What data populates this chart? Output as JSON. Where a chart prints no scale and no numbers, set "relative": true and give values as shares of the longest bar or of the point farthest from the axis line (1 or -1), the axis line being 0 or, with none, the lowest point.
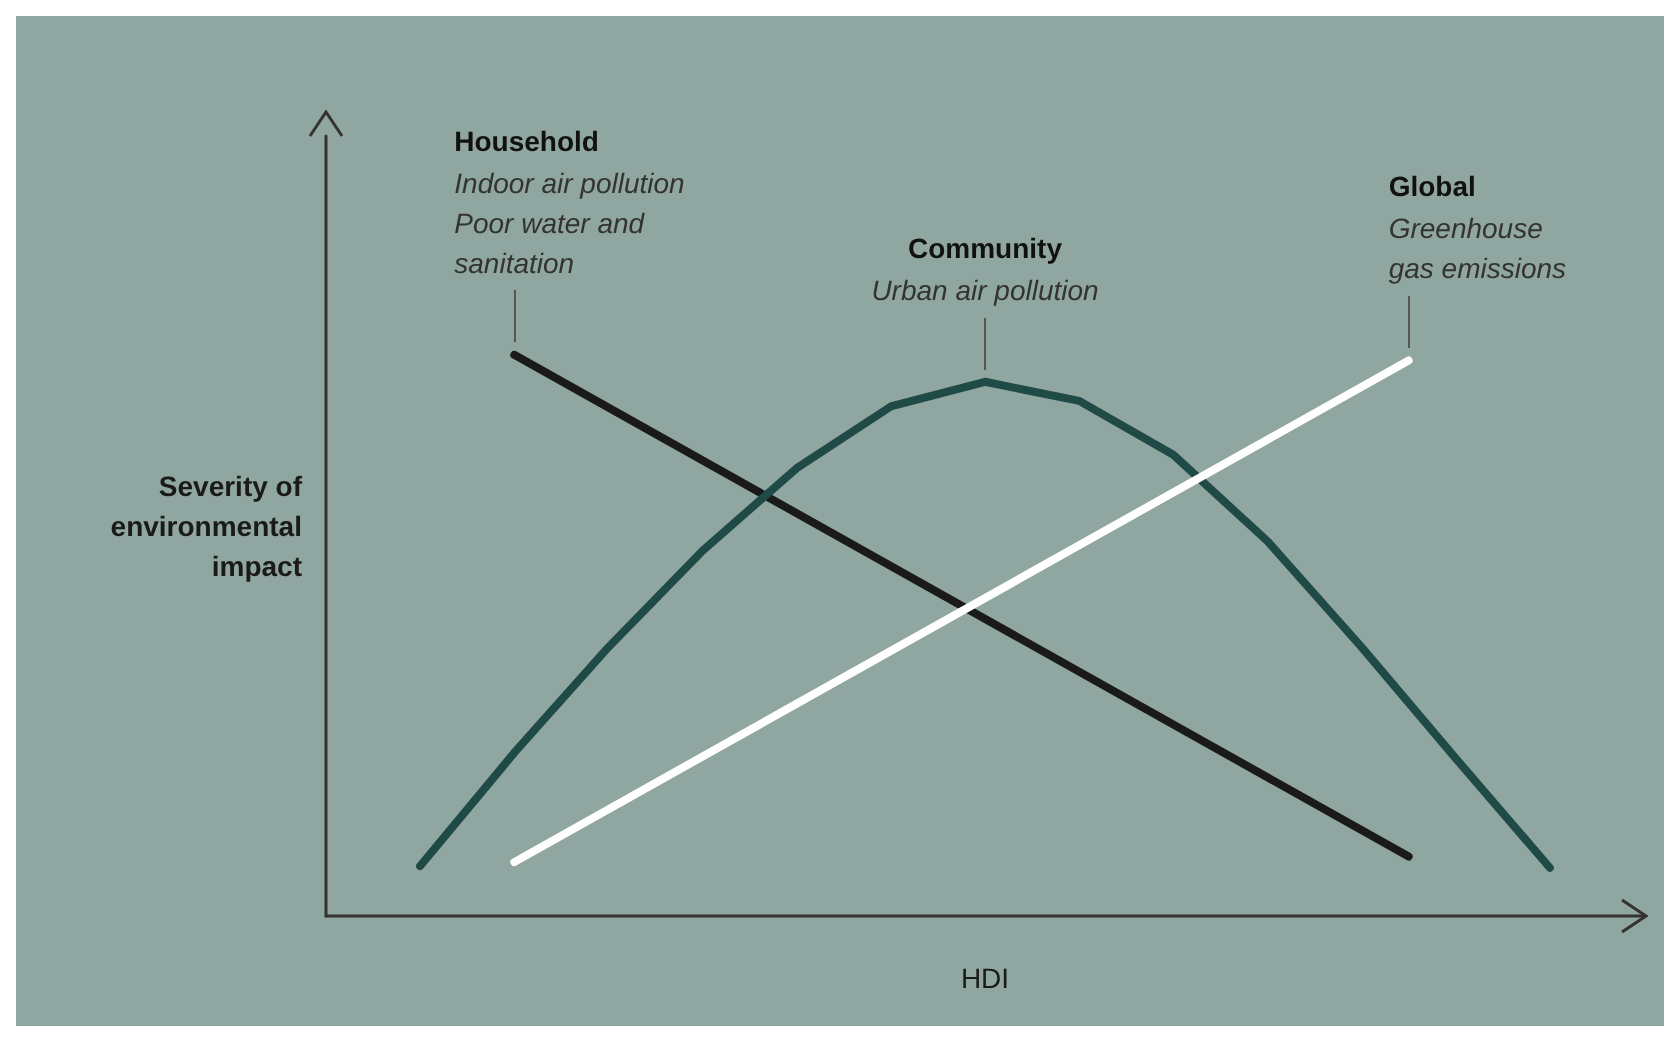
{
  "chart_data": {
    "type": "line",
    "relative": true,
    "xlabel": "HDI",
    "ylabel": "Severity of\nenvironmental\nimpact",
    "categories": [
      null,
      null,
      null,
      null,
      null,
      null,
      null,
      null,
      null,
      null,
      null,
      null,
      null,
      null,
      null,
      null,
      null,
      null,
      null,
      null,
      null,
      null,
      null,
      null,
      null,
      null,
      null,
      null,
      null
    ],
    "series": [
      {
        "color": "#1a1a1a",
        "values": [
          null,
          null,
          null,
          null,
          1,
          null,
          null,
          null,
          null,
          null,
          null,
          null,
          null,
          null,
          null,
          null,
          null,
          null,
          null,
          null,
          null,
          null,
          null,
          0.106,
          null,
          null,
          null,
          null,
          null
        ]
      },
      {
        "color": "#1f4a45",
        "values": [
          null,
          null,
          0.089,
          null,
          0.291,
          null,
          0.479,
          null,
          0.651,
          null,
          0.798,
          null,
          0.908,
          null,
          0.952,
          null,
          0.918,
          null,
          0.822,
          null,
          0.668,
          null,
          0.479,
          null,
          0.281,
          null,
          0.086,
          null,
          null
        ]
      },
      {
        "color": "#ffffff",
        "values": [
          null,
          null,
          null,
          null,
          0.096,
          null,
          null,
          null,
          null,
          null,
          null,
          null,
          null,
          null,
          null,
          null,
          null,
          null,
          null,
          null,
          null,
          null,
          null,
          0.99,
          null,
          null,
          null,
          null,
          null
        ]
      }
    ],
    "annotations": [
      "Household\nIndoor air pollution\nPoor water and\nsanitation",
      "Community\nUrban air pollution",
      "Global\nGreenhouse\ngas emissions"
    ],
    "grid": false,
    "legend": false,
    "marker": "none",
    "line_style": "solid"
  }
}
